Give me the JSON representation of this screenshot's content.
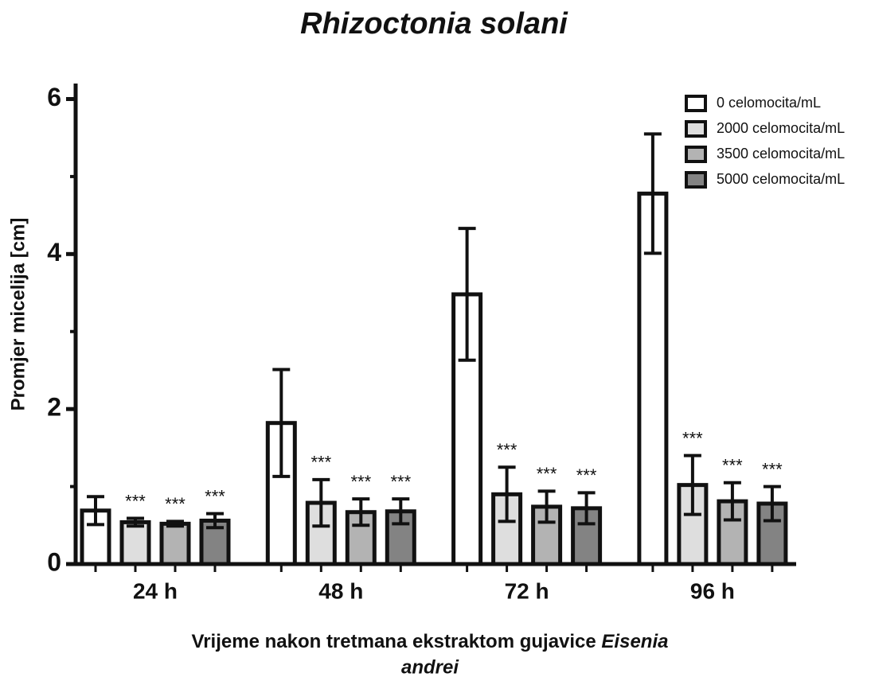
{
  "chart_data": {
    "type": "bar",
    "title": "Rhizoctonia solani",
    "ylabel": "Promjer micelija [cm]",
    "xlabel": [
      "Vrijeme nakon tretmana ekstraktom gujavice",
      "Eisenia",
      "andrei"
    ],
    "categories": [
      "24 h",
      "48 h",
      "72 h",
      "96 h"
    ],
    "ylim": [
      0,
      6.2
    ],
    "yticks": [
      0,
      2,
      4,
      6
    ],
    "minor_yticks": [
      1,
      3,
      5
    ],
    "legend": "upper right",
    "series": [
      {
        "name": "0 celomocita/mL",
        "color": "#ffffff",
        "values": [
          0.69,
          1.82,
          3.48,
          4.78
        ],
        "errors": [
          0.18,
          0.69,
          0.85,
          0.77
        ],
        "annotations": [
          null,
          null,
          null,
          null
        ]
      },
      {
        "name": "2000 celomocita/mL",
        "color": "#dedede",
        "values": [
          0.54,
          0.79,
          0.9,
          1.02
        ],
        "errors": [
          0.05,
          0.3,
          0.35,
          0.38
        ],
        "annotations": [
          "***",
          "***",
          "***",
          "***"
        ]
      },
      {
        "name": "3500 celomocita/mL",
        "color": "#b3b3b3",
        "values": [
          0.52,
          0.67,
          0.74,
          0.81
        ],
        "errors": [
          0.03,
          0.17,
          0.2,
          0.24
        ],
        "annotations": [
          "***",
          "***",
          "***",
          "***"
        ]
      },
      {
        "name": "5000 celomocita/mL",
        "color": "#838383",
        "values": [
          0.56,
          0.68,
          0.72,
          0.78
        ],
        "errors": [
          0.09,
          0.16,
          0.2,
          0.22
        ],
        "annotations": [
          "***",
          "***",
          "***",
          "***"
        ]
      }
    ]
  }
}
